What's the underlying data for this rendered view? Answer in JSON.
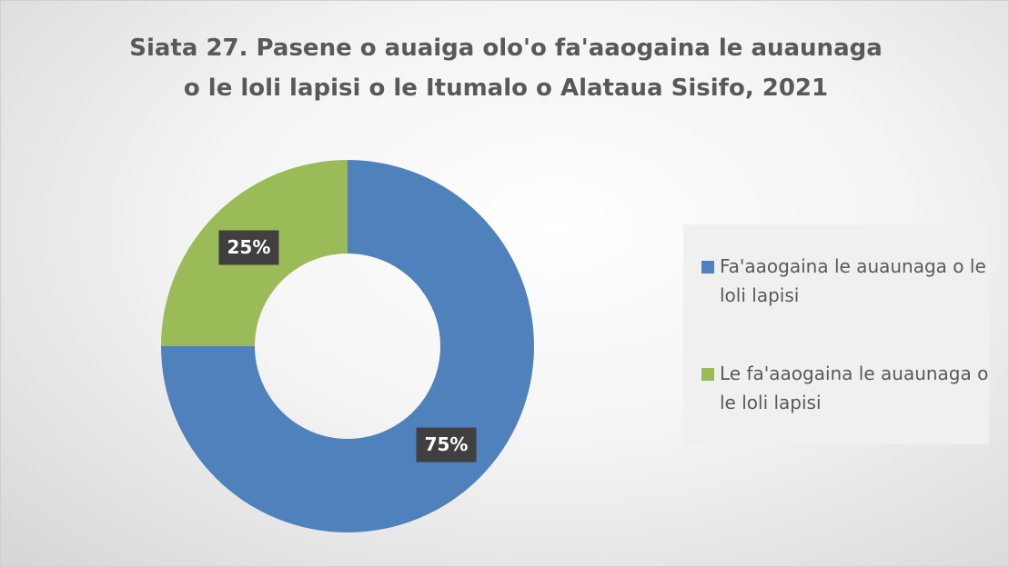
{
  "chart_data": {
    "type": "donut",
    "title": "Siata 27. Pasene o auaiga olo'o fa'aaogaina le auaunaga o le loli lapisi o le Itumalo o Alataua Sisifo, 2021",
    "categories": [
      "Fa'aaogaina le auaunaga o le loli lapisi",
      "Le fa'aaogaina le auaunaga o le loli lapisi"
    ],
    "values": [
      75,
      25
    ],
    "value_labels": [
      "75%",
      "25%"
    ],
    "colors": [
      "#4f81bd",
      "#9bbb59"
    ],
    "legend": "right"
  }
}
